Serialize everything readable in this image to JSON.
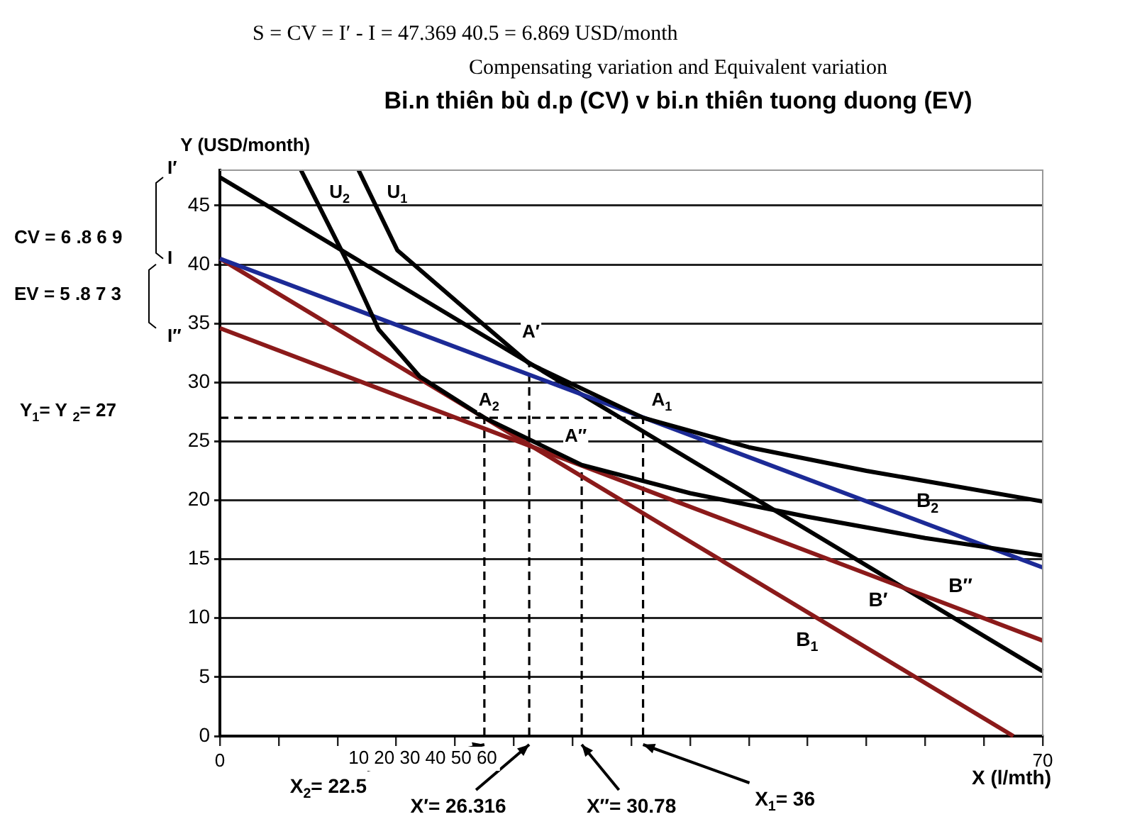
{
  "chart_data": {
    "type": "line",
    "title": "Bi.n thiên bù d.p (CV) v bi.n thiên tuong duong (EV)",
    "xlabel": "X (l/mth)",
    "ylabel": "Y (USD/month)",
    "xlim": [
      0,
      70
    ],
    "ylim": [
      0,
      48
    ],
    "xticks": [
      0,
      {
        "value": 5,
        "label": null
      },
      {
        "value": 10,
        "label": null
      },
      {
        "value": 15,
        "label": null
      },
      {
        "value": 20,
        "label": null
      },
      {
        "value": 25,
        "label": null
      },
      {
        "value": 30,
        "label": null
      },
      {
        "value": 35,
        "label": null
      },
      {
        "value": 40,
        "label": null
      },
      {
        "value": 45,
        "label": null
      },
      {
        "value": 50,
        "label": null
      },
      {
        "value": 55,
        "label": null
      },
      {
        "value": 60,
        "label": null
      },
      {
        "value": 65,
        "label": null
      },
      70
    ],
    "yticks": [
      0,
      5,
      10,
      15,
      20,
      25,
      30,
      35,
      40,
      45
    ],
    "grid": "y",
    "legend": false,
    "marker": "none",
    "series": [
      {
        "name": "U$_{1}$",
        "color": "#000000",
        "x": [
          11.8,
          15.1,
          21.5,
          26.316,
          36,
          45,
          55,
          70
        ],
        "values": [
          48,
          41.2,
          35.7,
          31.6,
          27,
          24.5,
          22.5,
          19.9
        ]
      },
      {
        "name": "U$_{2}$",
        "color": "#000000",
        "x": [
          6.9,
          11.2,
          13.5,
          17,
          22.5,
          30.78,
          40,
          50,
          60,
          70
        ],
        "values": [
          48,
          39.5,
          34.5,
          30.5,
          27,
          23,
          20.6,
          18.6,
          16.8,
          15.3
        ]
      },
      {
        "name": "B$_{2}$",
        "color": "#1c2a96",
        "x": [
          0,
          70
        ],
        "values": [
          40.5,
          14.3
        ]
      },
      {
        "name": "B$_{1}$",
        "color": "#8b1a1a",
        "x": [
          0,
          67.5
        ],
        "values": [
          40.5,
          0
        ]
      },
      {
        "name": "B″",
        "color": "#8b1a1a",
        "x": [
          0,
          70
        ],
        "values": [
          34.6,
          8.1
        ]
      },
      {
        "name": "B′",
        "color": "#000000",
        "x": [
          0,
          70
        ],
        "values": [
          47.4,
          5.5
        ]
      },
      {
        "color": "#000000",
        "line_style": "dashed",
        "x": [
          0,
          36
        ],
        "values": [
          27,
          27
        ]
      },
      {
        "color": "#000000",
        "line_style": "dashed",
        "x": [
          22.5,
          22.5
        ],
        "values": [
          0,
          27
        ]
      },
      {
        "color": "#000000",
        "line_style": "dashed",
        "x": [
          26.316,
          26.316
        ],
        "values": [
          0,
          31.6
        ]
      },
      {
        "color": "#000000",
        "line_style": "dashed",
        "x": [
          30.78,
          30.78
        ],
        "values": [
          0,
          23
        ]
      },
      {
        "color": "#000000",
        "line_style": "dashed",
        "x": [
          36,
          36
        ],
        "values": [
          0,
          27
        ]
      }
    ],
    "annotations": [
      "S = CV = I′ - I = 47.369 40.5 = 6.869 USD/month",
      "Compensating variation and Equivalent variation",
      "10 20 30 40 50 60",
      "CV = 6 .8 6 9",
      "EV = 5 .8 7 3",
      "Y$_{1}$= Y $_{2}$= 27",
      {
        "text": "I′",
        "x": 0,
        "y": 47.4
      },
      {
        "text": "I",
        "x": 0,
        "y": 40.5
      },
      {
        "text": "I″",
        "x": 0,
        "y": 34.6
      },
      {
        "text": "A′",
        "x": 26.316,
        "y": 31.6
      },
      {
        "text": "A$_{2}$",
        "x": 22.5,
        "y": 27
      },
      {
        "text": "A$_{1}$",
        "x": 36,
        "y": 27
      },
      {
        "text": "A″",
        "x": 30.78,
        "y": 23
      },
      {
        "text": "X$_{2}$= 22.5",
        "x": 22.5,
        "y": 0
      },
      {
        "text": "X′= 26.316",
        "x": 26.316,
        "y": 0
      },
      {
        "text": "X″= 30.78",
        "x": 30.78,
        "y": 0
      },
      {
        "text": "X$_{1}$= 36",
        "x": 36,
        "y": 0
      }
    ]
  }
}
